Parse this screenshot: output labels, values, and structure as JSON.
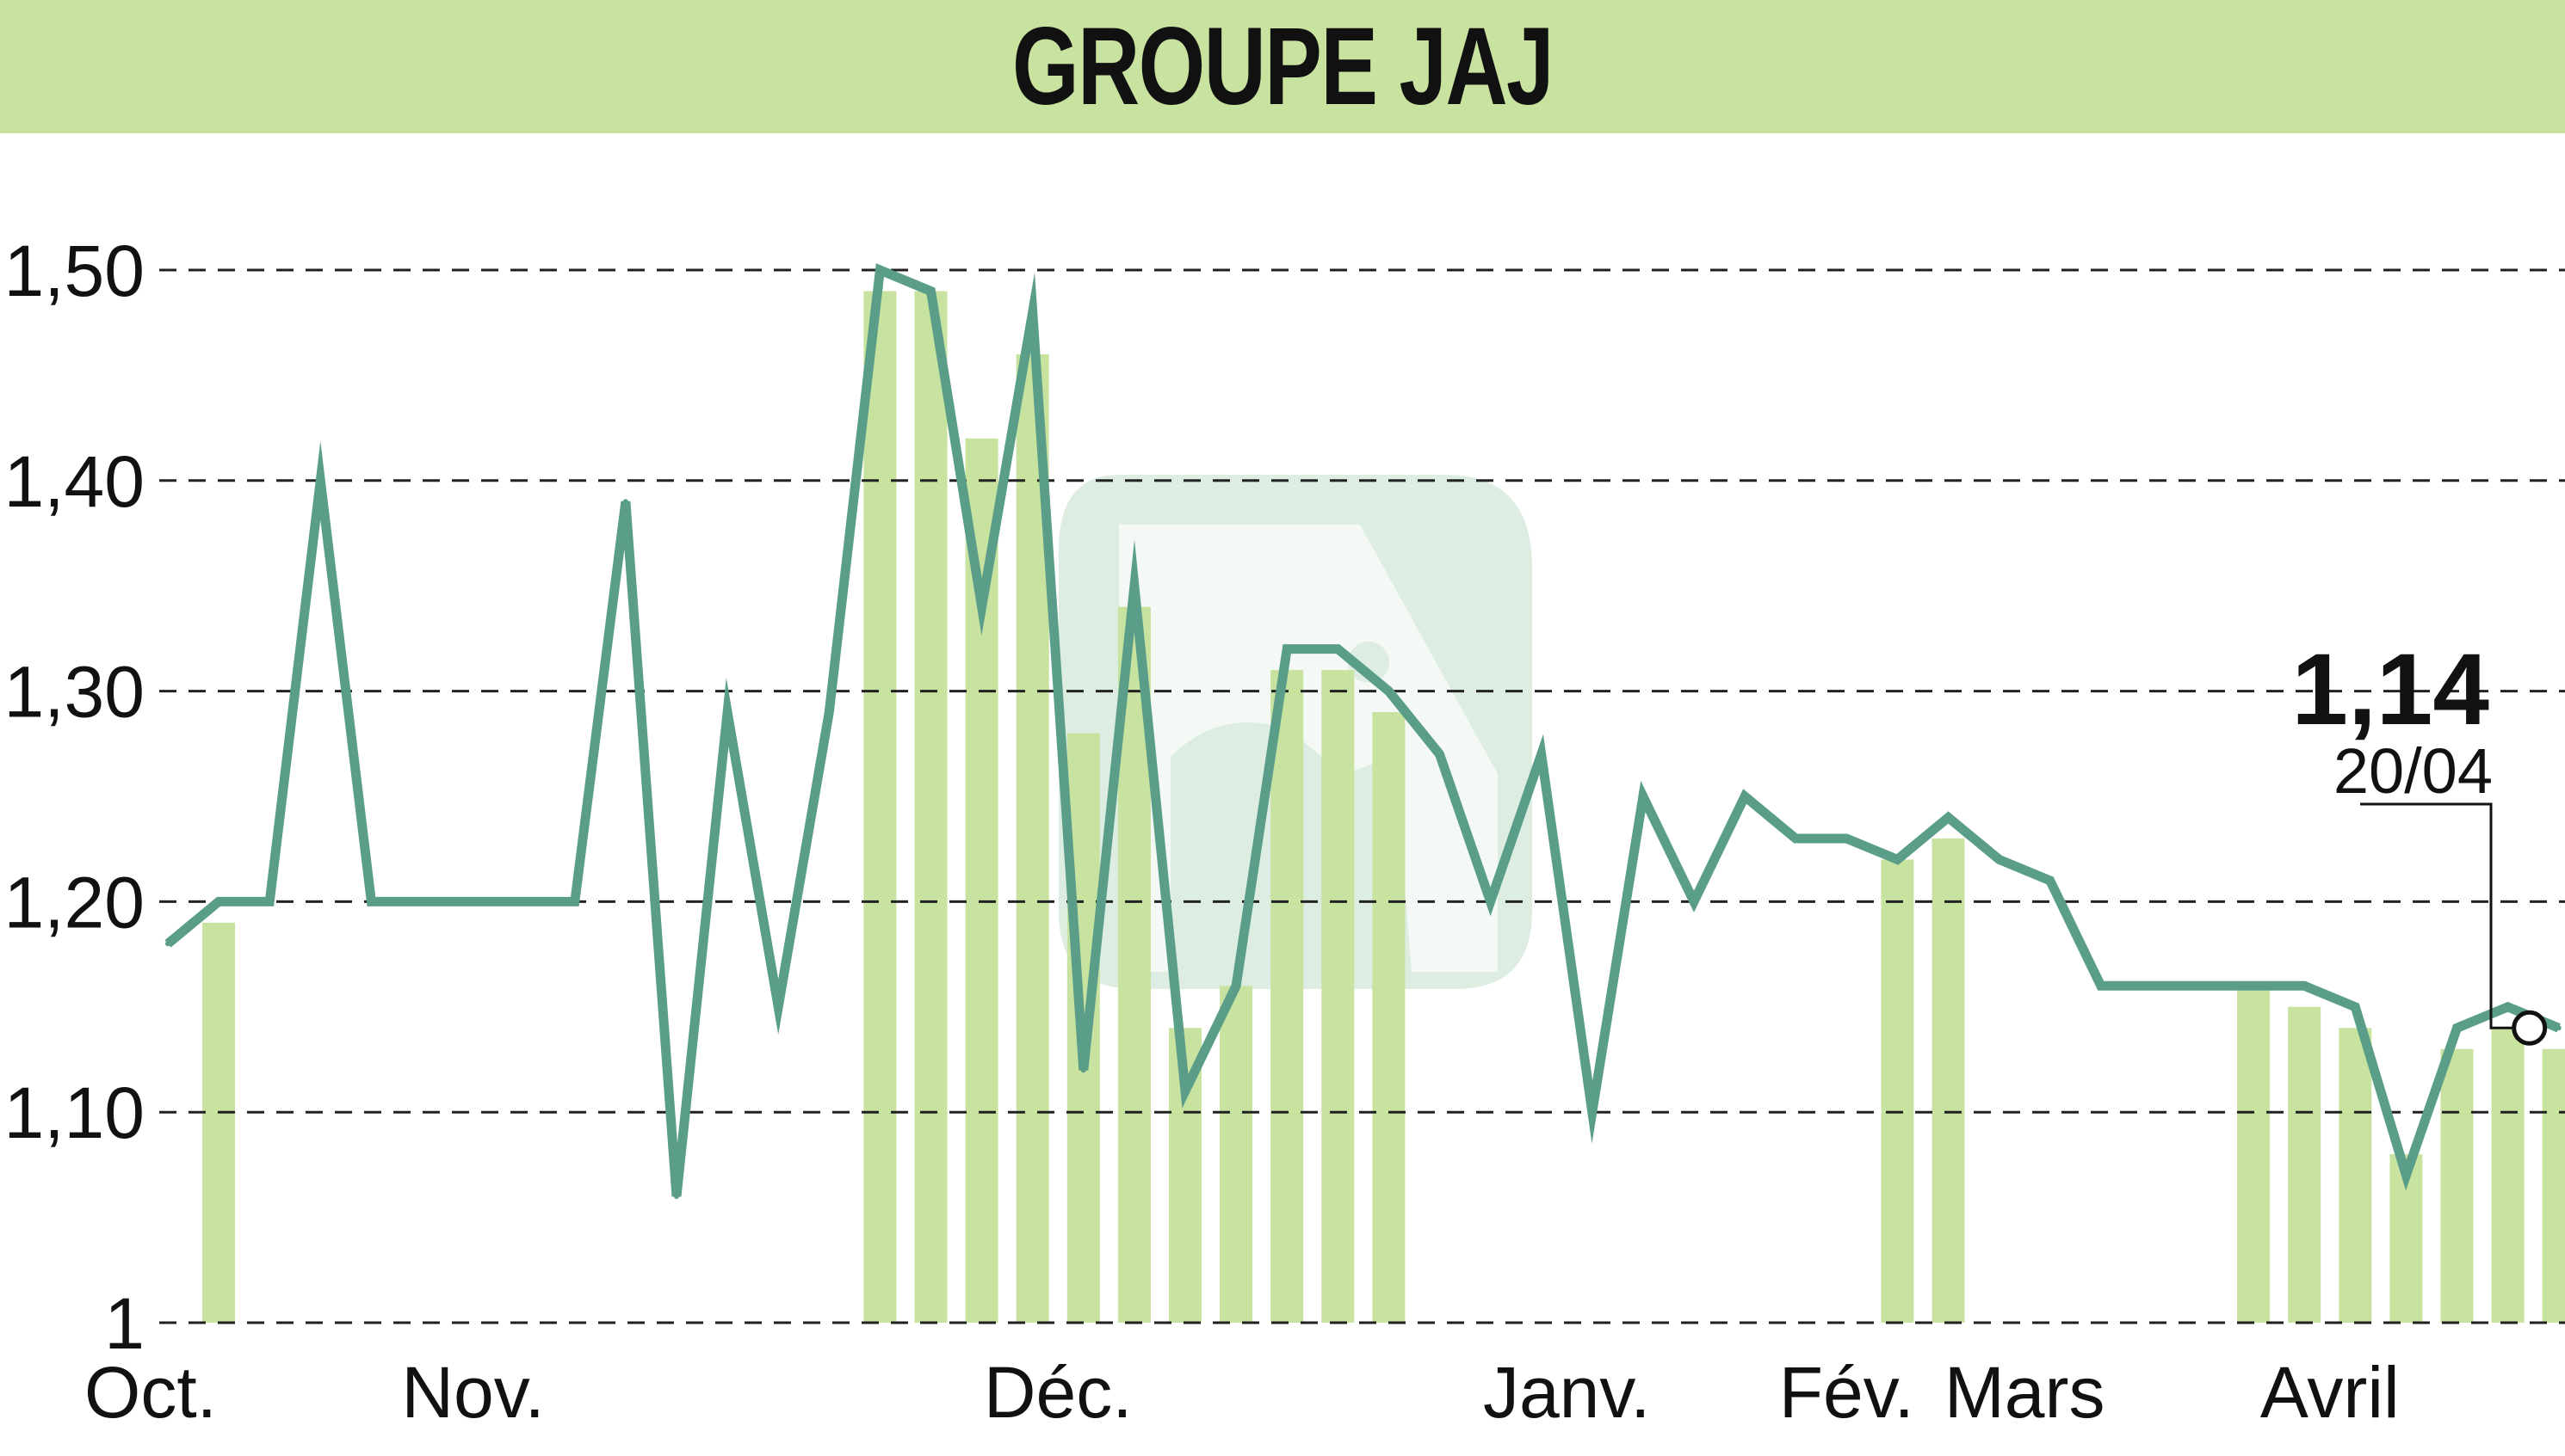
{
  "title": "GROUPE JAJ",
  "chart_data": {
    "type": "line",
    "title": "GROUPE JAJ",
    "xlabel": "",
    "ylabel": "",
    "ylim": [
      1.0,
      1.5
    ],
    "y_ticks": [
      {
        "value": 1.0,
        "label": "1"
      },
      {
        "value": 1.1,
        "label": "1,10"
      },
      {
        "value": 1.2,
        "label": "1,20"
      },
      {
        "value": 1.3,
        "label": "1,30"
      },
      {
        "value": 1.4,
        "label": "1,40"
      },
      {
        "value": 1.5,
        "label": "1,50"
      }
    ],
    "x_ticks": [
      {
        "index": 0,
        "label": "Oct."
      },
      {
        "index": 6,
        "label": "Nov."
      },
      {
        "index": 17.5,
        "label": "Déc."
      },
      {
        "index": 27.5,
        "label": "Janv."
      },
      {
        "index": 33,
        "label": "Fév."
      },
      {
        "index": 36.5,
        "label": "Mars"
      },
      {
        "index": 42.5,
        "label": "Avril"
      }
    ],
    "grid": "horizontal dashed",
    "series": [
      {
        "values": [
          1.18,
          1.2,
          1.2,
          1.4,
          1.2,
          1.2,
          1.2,
          1.2,
          1.2,
          1.39,
          1.06,
          1.29,
          1.15,
          1.29,
          1.5,
          1.49,
          1.34,
          1.48,
          1.12,
          1.35,
          1.11,
          1.16,
          1.32,
          1.32,
          1.3,
          1.27,
          1.2,
          1.27,
          1.1,
          1.25,
          1.2,
          1.25,
          1.23,
          1.23,
          1.22,
          1.24,
          1.22,
          1.21,
          1.16,
          1.16,
          1.16,
          1.16,
          1.16,
          1.15,
          1.07,
          1.14,
          1.15,
          1.14
        ]
      }
    ],
    "volume_bars": [
      {
        "index": 1,
        "value": 1.19
      },
      {
        "index": 14,
        "value": 1.49
      },
      {
        "index": 15,
        "value": 1.49
      },
      {
        "index": 16,
        "value": 1.42
      },
      {
        "index": 17,
        "value": 1.46
      },
      {
        "index": 18,
        "value": 1.28
      },
      {
        "index": 19,
        "value": 1.34
      },
      {
        "index": 20,
        "value": 1.14
      },
      {
        "index": 21,
        "value": 1.16
      },
      {
        "index": 22,
        "value": 1.31
      },
      {
        "index": 23,
        "value": 1.31
      },
      {
        "index": 24,
        "value": 1.29
      },
      {
        "index": 34,
        "value": 1.22
      },
      {
        "index": 35,
        "value": 1.23
      },
      {
        "index": 41,
        "value": 1.16
      },
      {
        "index": 42,
        "value": 1.15
      },
      {
        "index": 43,
        "value": 1.14
      },
      {
        "index": 44,
        "value": 1.08
      },
      {
        "index": 45,
        "value": 1.13
      },
      {
        "index": 46,
        "value": 1.14
      },
      {
        "index": 47,
        "value": 1.13
      }
    ],
    "last_point": {
      "value_label": "1,14",
      "date_label": "20/04",
      "index": 47
    }
  },
  "colors": {
    "line": "#5a9e8a",
    "bars": "#c8e2a0",
    "header": "#c8e2a0",
    "grid": "#222222",
    "watermark": "#a8d0b4"
  }
}
